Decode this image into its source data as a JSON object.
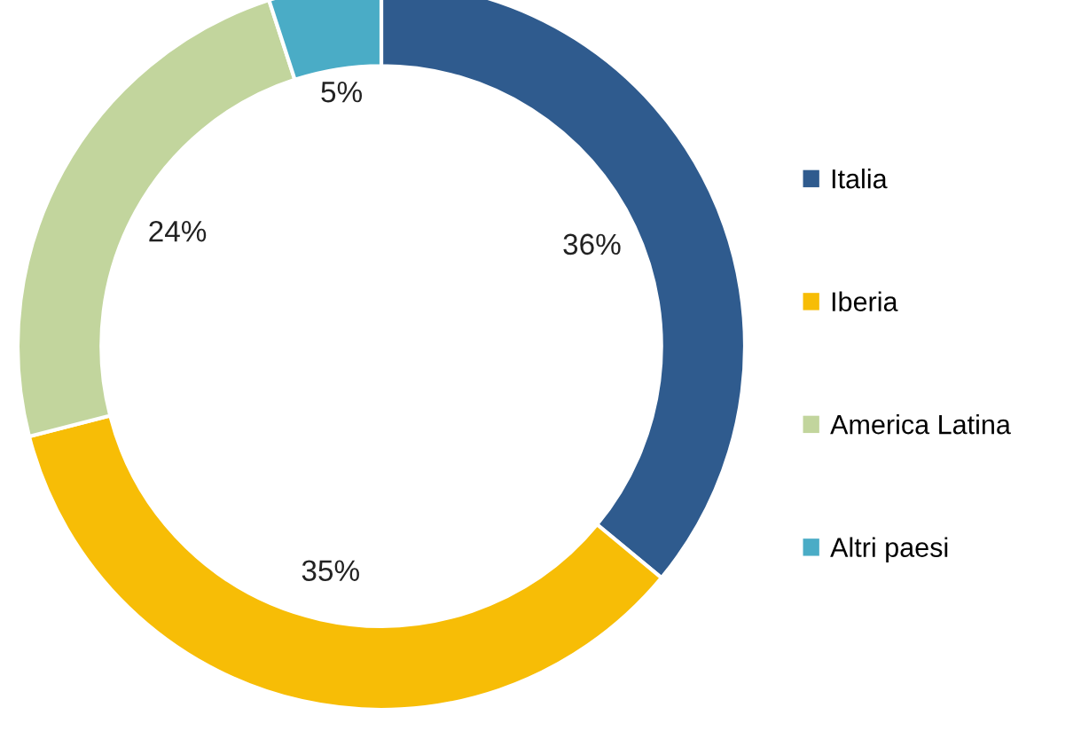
{
  "chart_data": {
    "type": "donut",
    "categories": [
      "Italia",
      "Iberia",
      "America Latina",
      "Altri paesi"
    ],
    "values": [
      36,
      35,
      24,
      5
    ],
    "colors": [
      "#2f5b8e",
      "#f7bd06",
      "#c2d59d",
      "#4aacc6"
    ],
    "value_labels": [
      "36%",
      "35%",
      "24%",
      "5%"
    ],
    "legend": "right"
  }
}
